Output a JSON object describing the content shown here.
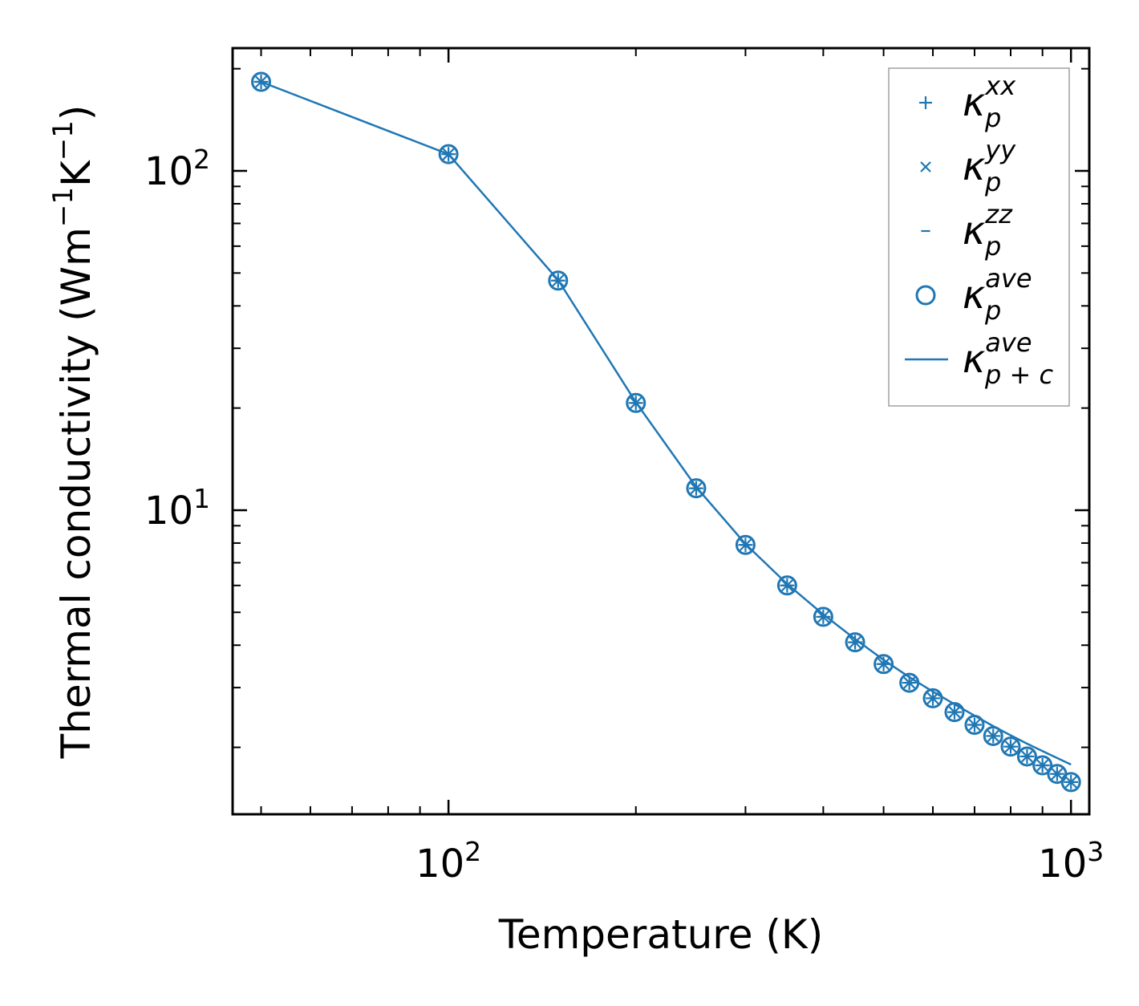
{
  "chart_data": {
    "type": "line",
    "title": "",
    "xlabel": "Temperature (K)",
    "ylabel": "Thermal conductivity (Wm",
    "ylabel_unit_parts": {
      "sup1": "−1",
      "mid": "K",
      "sup2": "−1",
      "close": ")"
    },
    "xscale": "log",
    "yscale": "log",
    "xlim": [
      45,
      1070
    ],
    "ylim": [
      1.27,
      230
    ],
    "x_ticks": [
      {
        "value": 100,
        "base": "10",
        "exp": "2"
      },
      {
        "value": 1000,
        "base": "10",
        "exp": "3"
      }
    ],
    "y_ticks": [
      {
        "value": 10,
        "base": "10",
        "exp": "1"
      },
      {
        "value": 100,
        "base": "10",
        "exp": "2"
      }
    ],
    "x": [
      50,
      100,
      150,
      200,
      250,
      300,
      350,
      400,
      450,
      500,
      550,
      600,
      650,
      700,
      750,
      800,
      850,
      900,
      950,
      1000
    ],
    "series": [
      {
        "name": "kxx",
        "marker": "+",
        "label_base": "κ",
        "label_sup": "xx",
        "label_sub": "p",
        "values": [
          183,
          112,
          47.5,
          20.7,
          11.6,
          7.9,
          6.0,
          4.85,
          4.08,
          3.52,
          3.1,
          2.79,
          2.54,
          2.33,
          2.16,
          2.01,
          1.88,
          1.77,
          1.67,
          1.58
        ]
      },
      {
        "name": "kyy",
        "marker": "x",
        "label_base": "κ",
        "label_sup": "yy",
        "label_sub": "p",
        "values": [
          183,
          112,
          47.5,
          20.7,
          11.6,
          7.9,
          6.0,
          4.85,
          4.08,
          3.52,
          3.1,
          2.79,
          2.54,
          2.33,
          2.16,
          2.01,
          1.88,
          1.77,
          1.67,
          1.58
        ]
      },
      {
        "name": "kzz",
        "marker": "_",
        "label_base": "κ",
        "label_sup": "zz",
        "label_sub": "p",
        "values": [
          183,
          112,
          47.5,
          20.7,
          11.6,
          7.9,
          6.0,
          4.85,
          4.08,
          3.52,
          3.1,
          2.79,
          2.54,
          2.33,
          2.16,
          2.01,
          1.88,
          1.77,
          1.67,
          1.58
        ]
      },
      {
        "name": "kave",
        "marker": "o",
        "label_base": "κ",
        "label_sup": "ave",
        "label_sub": "p",
        "values": [
          183,
          112,
          47.5,
          20.7,
          11.6,
          7.9,
          6.0,
          4.85,
          4.08,
          3.52,
          3.1,
          2.79,
          2.54,
          2.33,
          2.16,
          2.01,
          1.88,
          1.77,
          1.67,
          1.58
        ]
      },
      {
        "name": "kave_pc",
        "marker": "line",
        "label_base": "κ",
        "label_sup": "ave",
        "label_sub": "p + c",
        "values": [
          183,
          112,
          47.7,
          20.8,
          11.7,
          7.95,
          6.06,
          4.93,
          4.17,
          3.62,
          3.22,
          2.92,
          2.68,
          2.48,
          2.31,
          2.17,
          2.05,
          1.95,
          1.86,
          1.78
        ]
      }
    ],
    "legend": {
      "position": "top-right"
    },
    "grid": false,
    "color": "#1f77b4"
  }
}
